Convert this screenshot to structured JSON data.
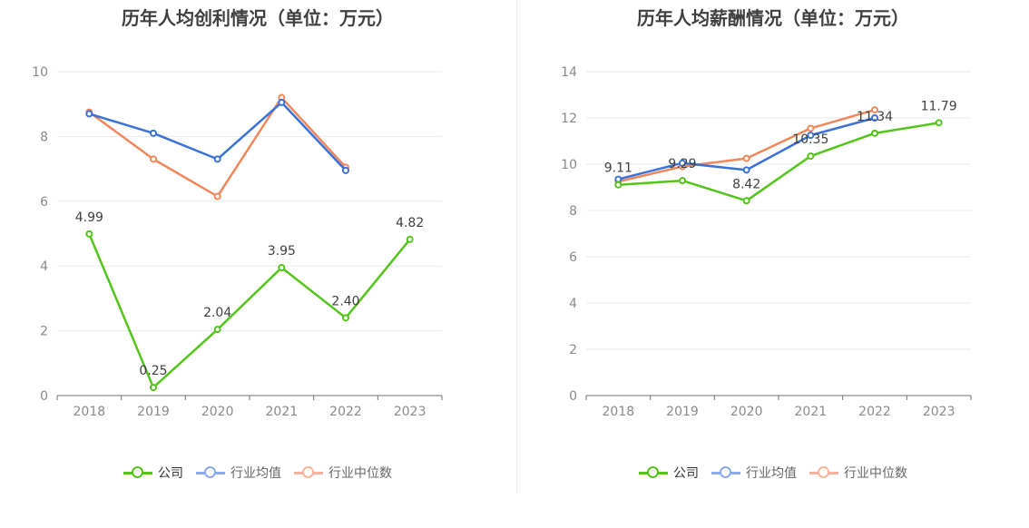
{
  "colors": {
    "company": "#52c41a",
    "industry_avg": "#3a72d8",
    "industry_median": "#f0875a",
    "legend_avg": "#8aaaf0",
    "legend_median": "#f6b49c"
  },
  "legend": {
    "company": "公司",
    "industry_avg": "行业均值",
    "industry_median": "行业中位数"
  },
  "chart_data": [
    {
      "type": "line",
      "title": "历年人均创利情况（单位：万元）",
      "categories": [
        "2018",
        "2019",
        "2020",
        "2021",
        "2022",
        "2023"
      ],
      "ylim": [
        0,
        10
      ],
      "yticks": [
        "0",
        "2",
        "4",
        "6",
        "8",
        "10"
      ],
      "grid": true,
      "legend_position": "bottom",
      "series": [
        {
          "name": "公司",
          "key": "company",
          "values": [
            4.99,
            0.25,
            2.04,
            3.95,
            2.4,
            4.82
          ],
          "labels": [
            "4.99",
            "0.25",
            "2.04",
            "3.95",
            "2.40",
            "4.82"
          ]
        },
        {
          "name": "行业均值",
          "key": "industry_avg",
          "values": [
            8.7,
            8.1,
            7.3,
            9.05,
            6.95,
            null
          ]
        },
        {
          "name": "行业中位数",
          "key": "industry_median",
          "values": [
            8.75,
            7.3,
            6.15,
            9.2,
            7.05,
            null
          ]
        }
      ]
    },
    {
      "type": "line",
      "title": "历年人均薪酬情况（单位：万元）",
      "categories": [
        "2018",
        "2019",
        "2020",
        "2021",
        "2022",
        "2023"
      ],
      "ylim": [
        0,
        14
      ],
      "yticks": [
        "0",
        "2",
        "4",
        "6",
        "8",
        "10",
        "12",
        "14"
      ],
      "grid": true,
      "legend_position": "bottom",
      "series": [
        {
          "name": "公司",
          "key": "company",
          "values": [
            9.11,
            9.29,
            8.42,
            10.35,
            11.34,
            11.79
          ],
          "labels": [
            "9.11",
            "9.29",
            "8.42",
            "10.35",
            "11.34",
            "11.79"
          ]
        },
        {
          "name": "行业均值",
          "key": "industry_avg",
          "values": [
            9.35,
            10.05,
            9.75,
            11.25,
            12.0,
            null
          ]
        },
        {
          "name": "行业中位数",
          "key": "industry_median",
          "values": [
            9.25,
            9.9,
            10.25,
            11.55,
            12.35,
            null
          ]
        }
      ]
    }
  ]
}
